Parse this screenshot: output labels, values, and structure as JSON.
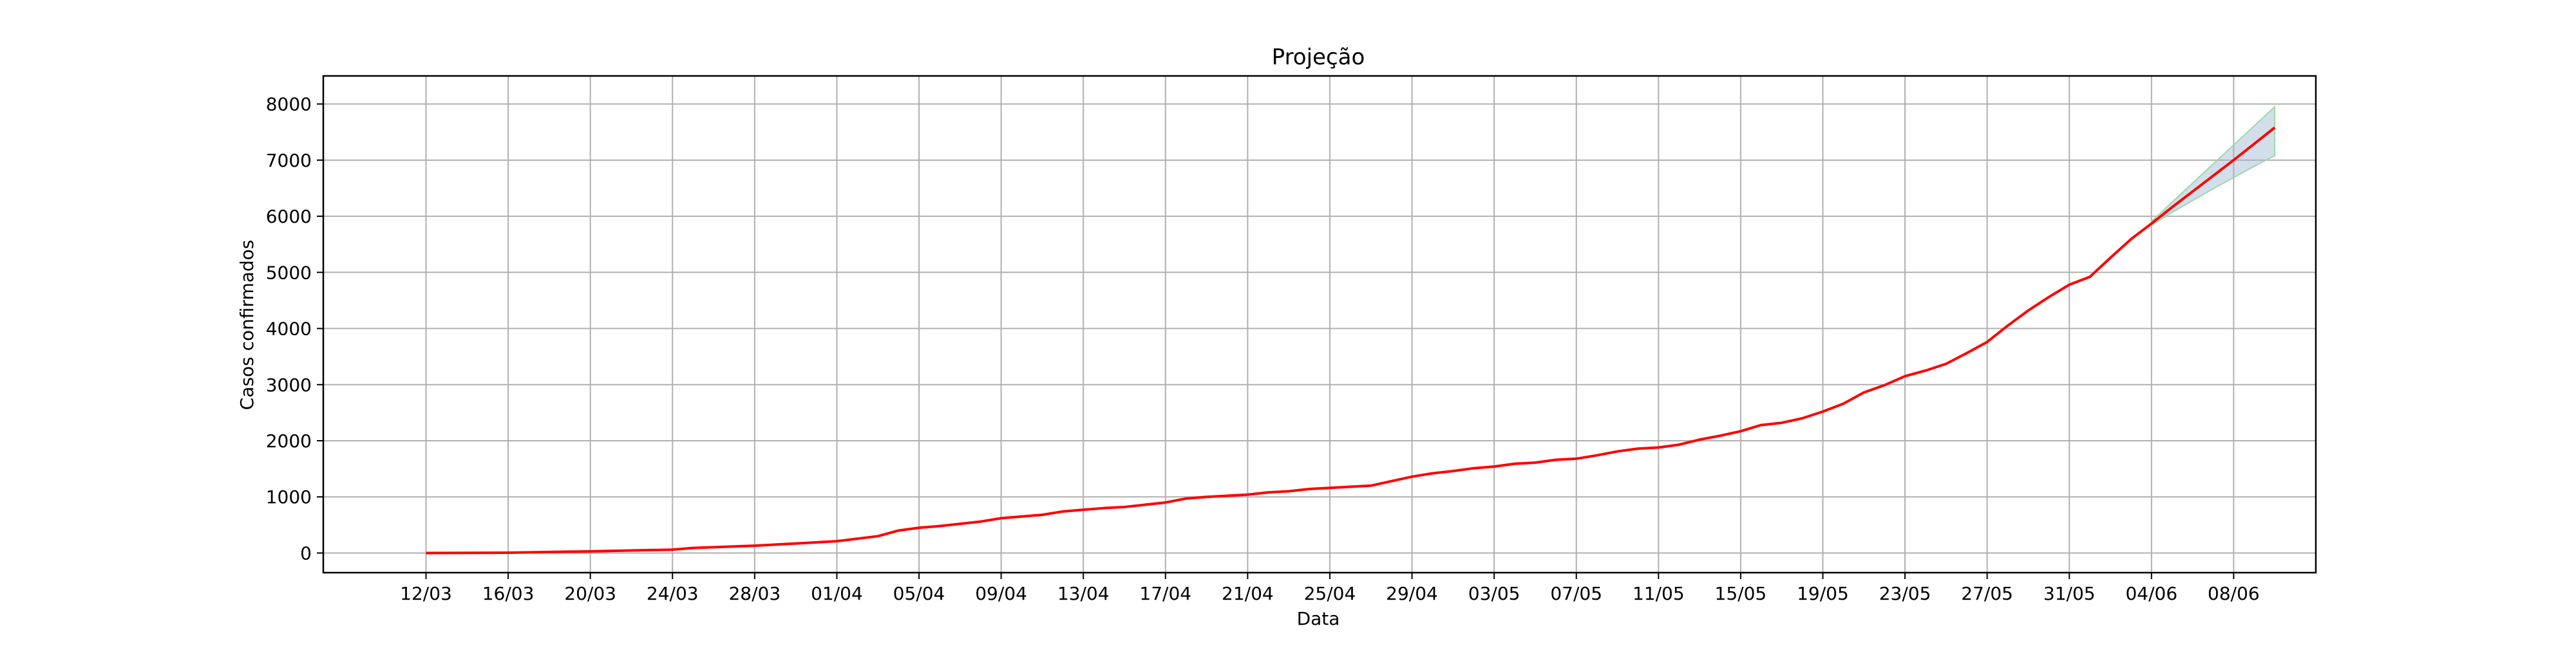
{
  "chart_data": {
    "type": "line",
    "title": "Projeção",
    "xlabel": "Data",
    "ylabel": "Casos confirmados",
    "xlim": [
      "2020-03-07",
      "2020-06-12"
    ],
    "ylim": [
      -350,
      8500
    ],
    "grid": true,
    "x_ticks": [
      "12/03",
      "16/03",
      "20/03",
      "24/03",
      "28/03",
      "01/04",
      "05/04",
      "09/04",
      "13/04",
      "17/04",
      "21/04",
      "25/04",
      "29/04",
      "03/05",
      "07/05",
      "11/05",
      "15/05",
      "19/05",
      "23/05",
      "27/05",
      "31/05",
      "04/06",
      "08/06"
    ],
    "y_ticks": [
      0,
      1000,
      2000,
      3000,
      4000,
      5000,
      6000,
      7000,
      8000
    ],
    "colors": {
      "line": "#ff0000",
      "band": "#9cb8d0",
      "band_edge": "#9bd8a8",
      "grid": "#b0b0b0"
    },
    "series": [
      {
        "x": [
          "2020-03-12",
          "2020-03-16",
          "2020-03-20",
          "2020-03-24",
          "2020-03-25",
          "2020-03-28",
          "2020-04-01",
          "2020-04-03",
          "2020-04-04",
          "2020-04-05",
          "2020-04-06",
          "2020-04-07",
          "2020-04-08",
          "2020-04-09",
          "2020-04-11",
          "2020-04-12",
          "2020-04-13",
          "2020-04-14",
          "2020-04-15",
          "2020-04-16",
          "2020-04-17",
          "2020-04-18",
          "2020-04-19",
          "2020-04-21",
          "2020-04-22",
          "2020-04-23",
          "2020-04-24",
          "2020-04-25",
          "2020-04-26",
          "2020-04-27",
          "2020-04-28",
          "2020-04-29",
          "2020-04-30",
          "2020-05-01",
          "2020-05-02",
          "2020-05-03",
          "2020-05-04",
          "2020-05-05",
          "2020-05-06",
          "2020-05-07",
          "2020-05-08",
          "2020-05-09",
          "2020-05-10",
          "2020-05-11",
          "2020-05-12",
          "2020-05-13",
          "2020-05-14",
          "2020-05-15",
          "2020-05-16",
          "2020-05-17",
          "2020-05-18",
          "2020-05-19",
          "2020-05-20",
          "2020-05-21",
          "2020-05-22",
          "2020-05-23",
          "2020-05-24",
          "2020-05-25",
          "2020-05-26",
          "2020-05-27",
          "2020-05-28",
          "2020-05-29",
          "2020-05-30",
          "2020-05-31",
          "2020-06-01",
          "2020-06-02",
          "2020-06-03",
          "2020-06-04",
          "2020-06-05",
          "2020-06-06",
          "2020-06-07",
          "2020-06-08",
          "2020-06-09",
          "2020-06-10"
        ],
        "y": [
          0,
          5,
          30,
          60,
          90,
          130,
          210,
          300,
          400,
          450,
          480,
          520,
          560,
          620,
          680,
          740,
          770,
          800,
          820,
          860,
          900,
          970,
          1000,
          1040,
          1080,
          1100,
          1140,
          1160,
          1180,
          1200,
          1280,
          1360,
          1420,
          1460,
          1510,
          1540,
          1590,
          1610,
          1660,
          1680,
          1740,
          1810,
          1860,
          1880,
          1930,
          2020,
          2090,
          2170,
          2280,
          2320,
          2400,
          2520,
          2660,
          2860,
          2990,
          3150,
          3250,
          3370,
          3560,
          3760,
          4050,
          4320,
          4560,
          4780,
          4920,
          5260,
          5590,
          5870,
          6160,
          6440,
          6720,
          7000,
          7290,
          7580
        ]
      }
    ],
    "projection_band": {
      "x": [
        "2020-06-04",
        "2020-06-05",
        "2020-06-06",
        "2020-06-07",
        "2020-06-08",
        "2020-06-09",
        "2020-06-10"
      ],
      "lower": [
        5840,
        6070,
        6280,
        6490,
        6690,
        6890,
        7080
      ],
      "upper": [
        5910,
        6250,
        6590,
        6930,
        7270,
        7610,
        7950
      ]
    }
  }
}
